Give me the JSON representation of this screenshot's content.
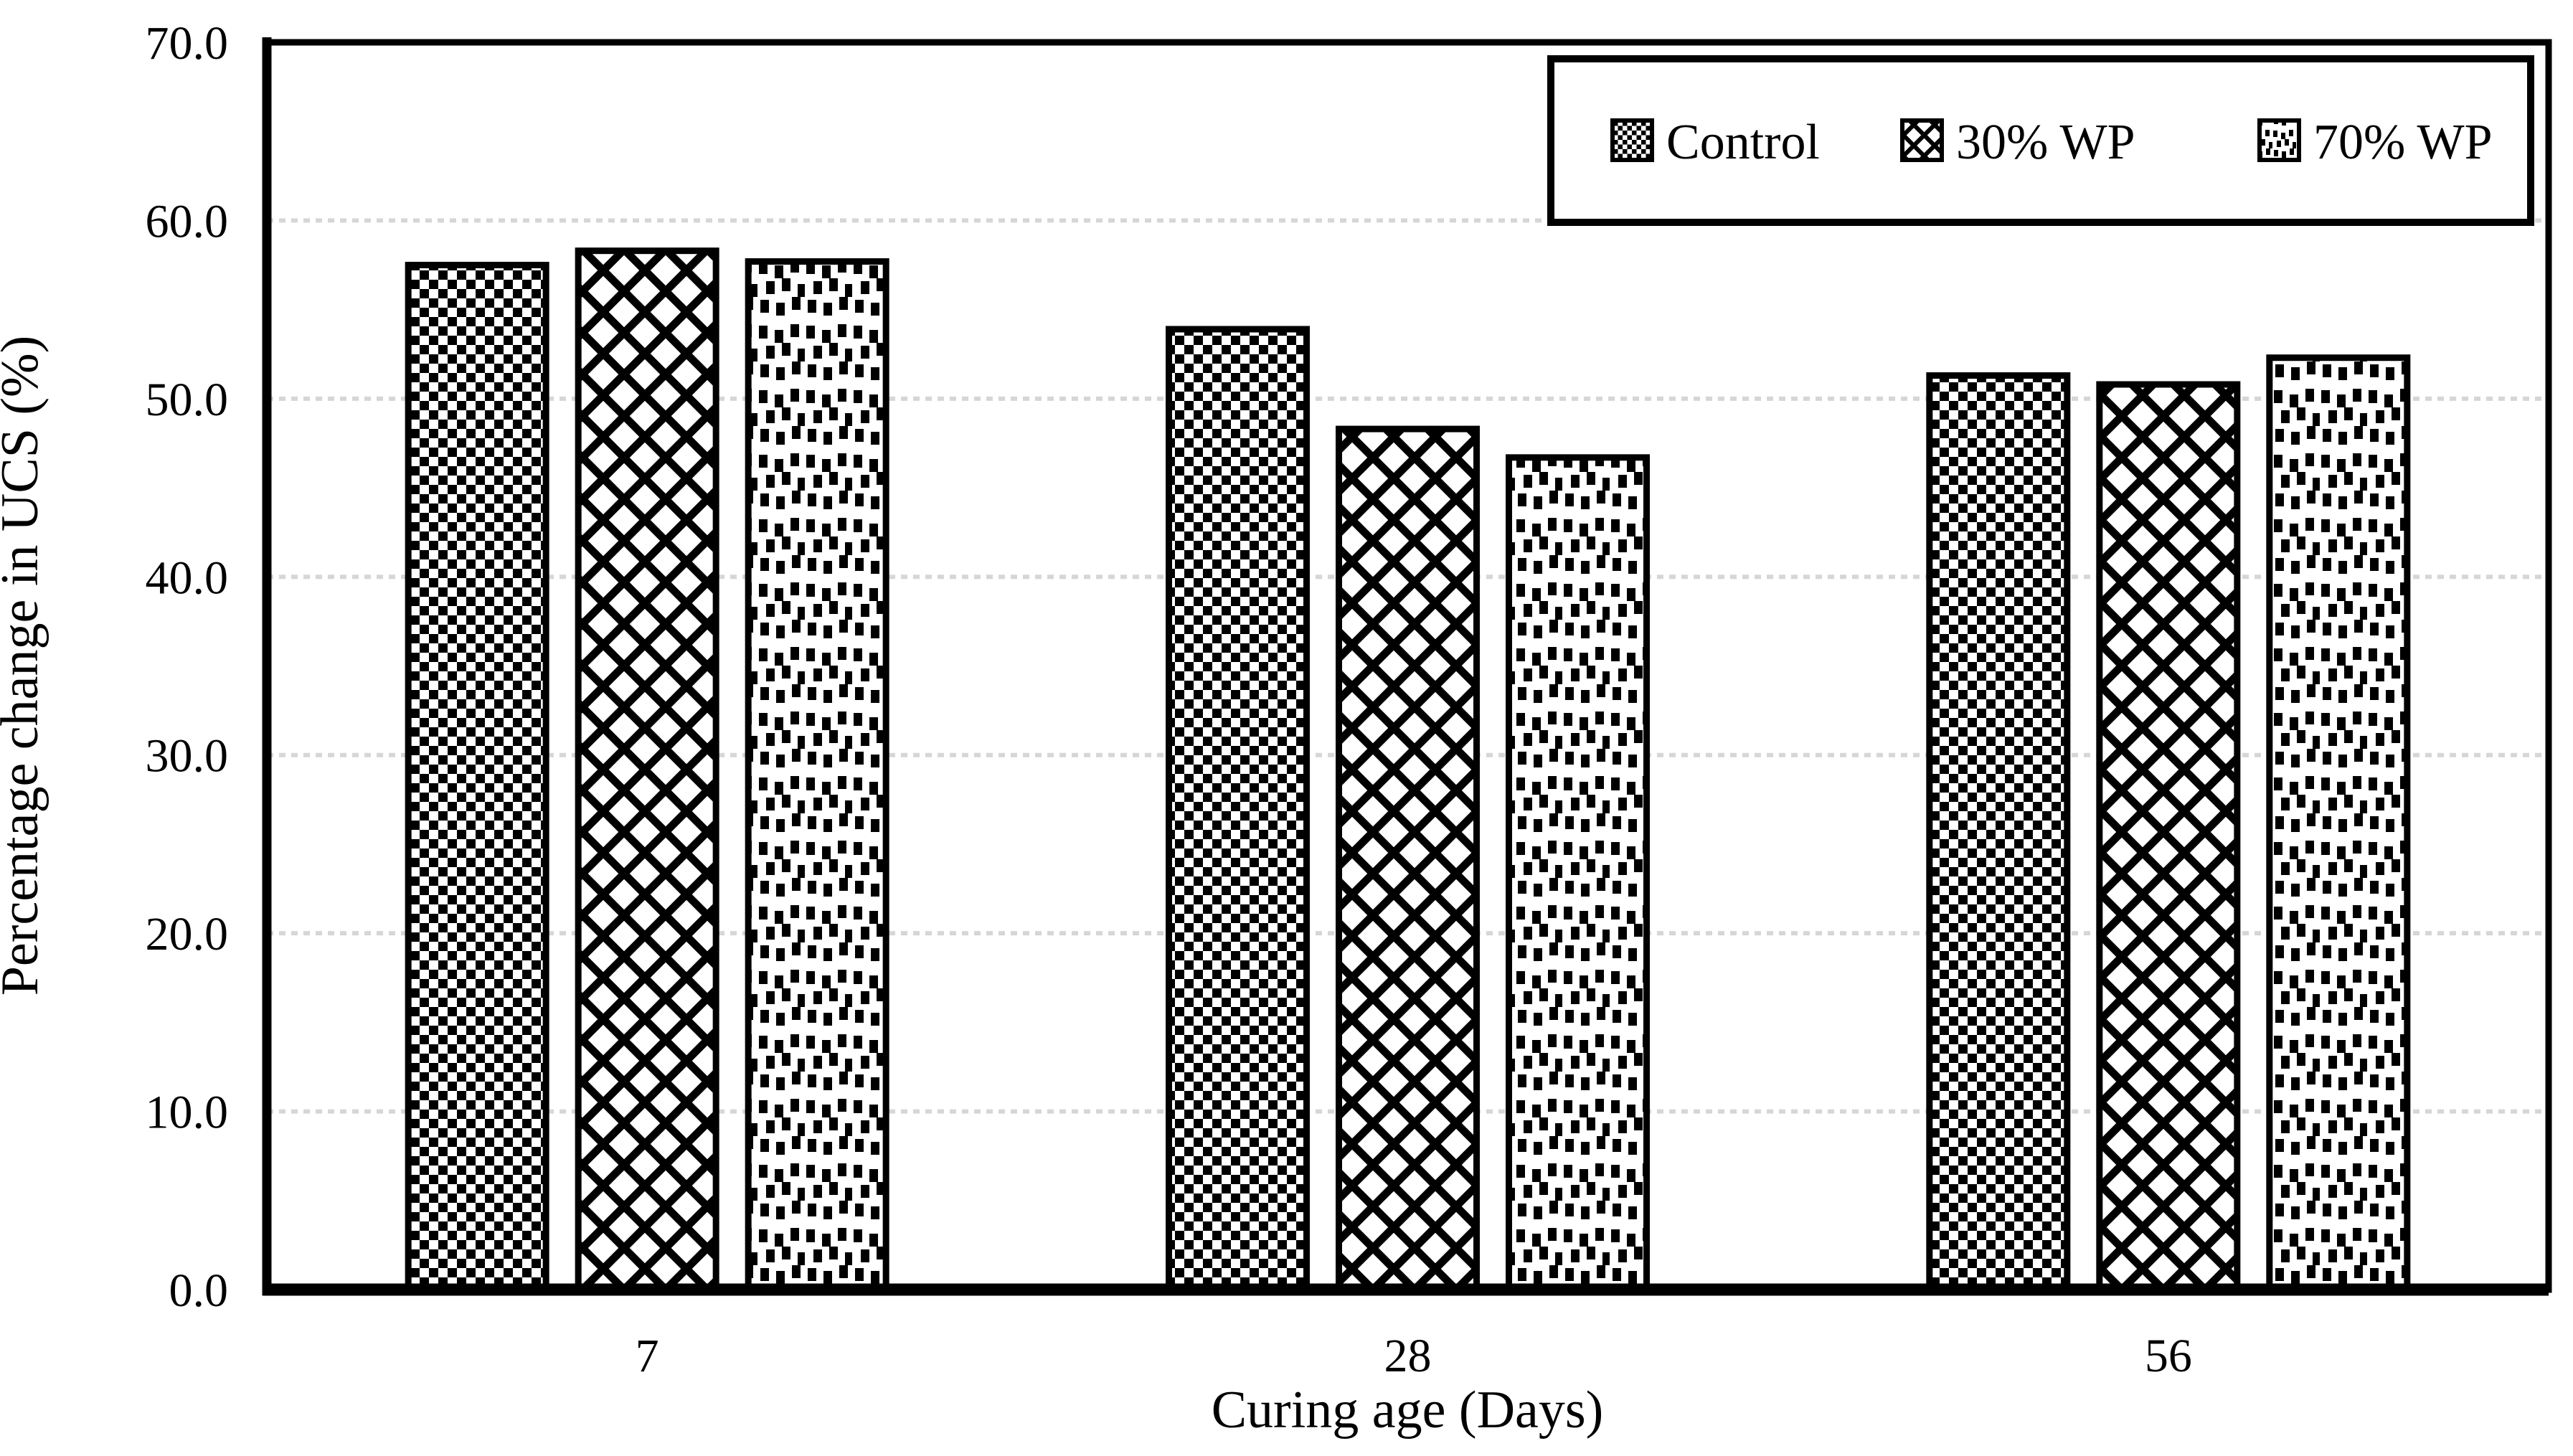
{
  "figure": {
    "background": "#ffffff",
    "ink_color": "#000000",
    "gridline_color": "#d6d6d6"
  },
  "chart_data": {
    "type": "bar",
    "title": "",
    "xlabel": "Curing age (Days)",
    "ylabel": "Percentage change in UCS (%)",
    "categories": [
      "7",
      "28",
      "56"
    ],
    "series": [
      {
        "name": "Control",
        "pattern": "checkerboard",
        "values": [
          57.5,
          53.9,
          51.3
        ]
      },
      {
        "name": "30% WP",
        "pattern": "diamond-lattice",
        "values": [
          58.3,
          48.3,
          50.8
        ]
      },
      {
        "name": "70% WP",
        "pattern": "speckle",
        "values": [
          57.7,
          46.7,
          52.3
        ]
      }
    ],
    "ylim": [
      0,
      70
    ],
    "ytick_step": 10,
    "ytick_labels": [
      "0.0",
      "10.0",
      "20.0",
      "30.0",
      "40.0",
      "50.0",
      "60.0",
      "70.0"
    ],
    "xtick_labels": [
      "7",
      "28",
      "56"
    ],
    "grid": true,
    "grid_style": "dotted",
    "legend_position": "top-right",
    "legend_labels": [
      "Control",
      "30% WP",
      "70% WP"
    ],
    "bar_fill": "#ffffff",
    "bar_edge": "#000000"
  }
}
